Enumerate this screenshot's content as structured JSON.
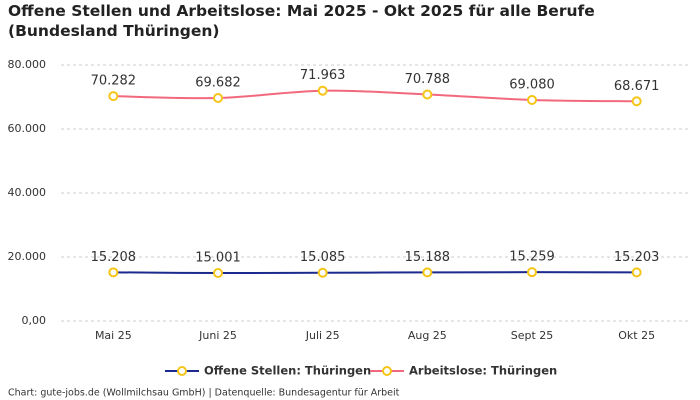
{
  "chart_data": {
    "type": "line",
    "title": "Offene Stellen und Arbeitslose: Mai 2025 - Okt 2025 für alle Berufe (Bundesland Thüringen)",
    "categories": [
      "Mai 25",
      "Juni 25",
      "Juli 25",
      "Aug 25",
      "Sept 25",
      "Okt 25"
    ],
    "series": [
      {
        "name": "Offene Stellen: Thüringen",
        "color": "#1b2a8c",
        "values": [
          15208,
          15001,
          15085,
          15188,
          15259,
          15203
        ],
        "value_labels": [
          "15.208",
          "15.001",
          "15.085",
          "15.188",
          "15.259",
          "15.203"
        ]
      },
      {
        "name": "Arbeitslose: Thüringen",
        "color": "#f2697e",
        "values": [
          70282,
          69682,
          71963,
          70788,
          69080,
          68671
        ],
        "value_labels": [
          "70.282",
          "69.682",
          "71.963",
          "70.788",
          "69.080",
          "68.671"
        ]
      }
    ],
    "marker_color": "#f5c518",
    "ylim": [
      0,
      80000
    ],
    "yticks": [
      {
        "value": 0,
        "label": "0,00"
      },
      {
        "value": 20000,
        "label": "20.000"
      },
      {
        "value": 40000,
        "label": "40.000"
      },
      {
        "value": 60000,
        "label": "60.000"
      },
      {
        "value": 80000,
        "label": "80.000"
      }
    ],
    "grid": true,
    "legend": "bottom",
    "source": "Chart: gute-jobs.de (Wollmilchsau GmbH) | Datenquelle: Bundesagentur für Arbeit"
  }
}
